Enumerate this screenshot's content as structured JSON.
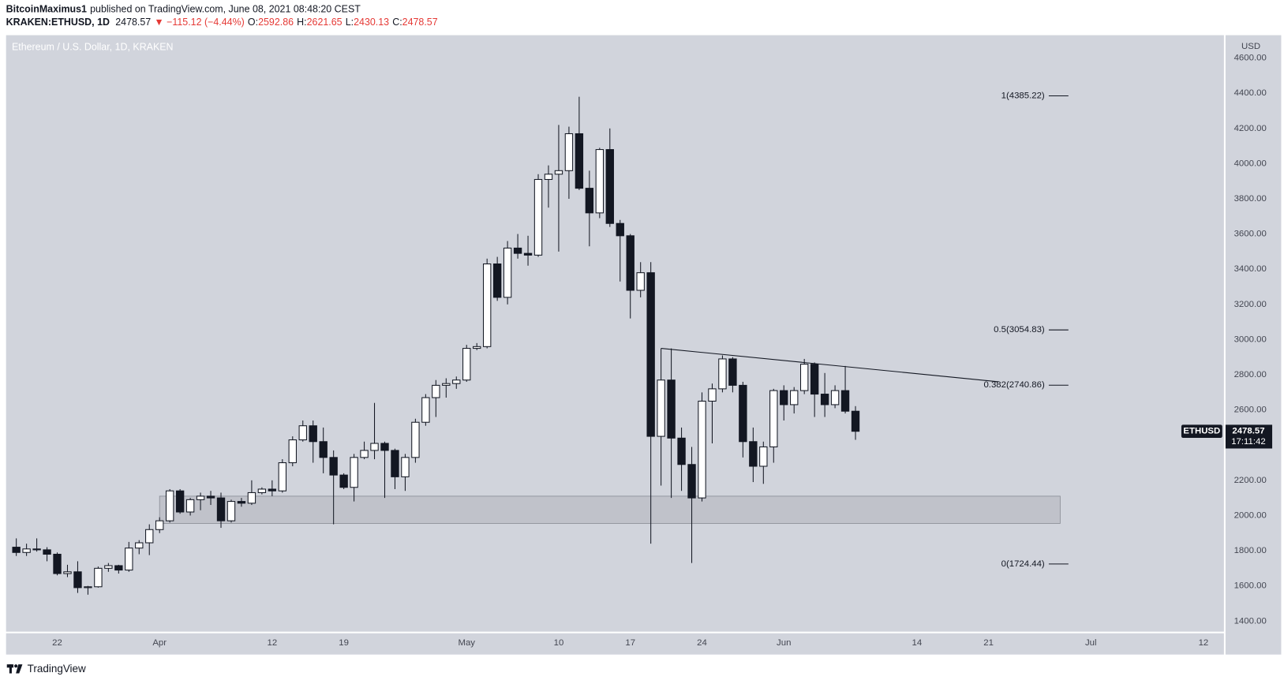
{
  "header": {
    "author": "BitcoinMaximus1",
    "published": "published on TradingView.com, June 08, 2021 08:48:20 CEST",
    "symbol": "KRAKEN:ETHUSD, 1D",
    "change": "▼ −115.12 (−4.44%)",
    "ohlc_labels": [
      "O:",
      "H:",
      "L:",
      "C:"
    ]
  },
  "chart_data": {
    "type": "candlestick",
    "title": "Ethereum / U.S. Dollar, 1D, KRAKEN",
    "y_axis_label": "USD",
    "x": [
      "03-18",
      "03-19",
      "03-20",
      "03-21",
      "03-22",
      "03-23",
      "03-24",
      "03-25",
      "03-26",
      "03-27",
      "03-28",
      "03-29",
      "03-30",
      "03-31",
      "04-01",
      "04-02",
      "04-03",
      "04-04",
      "04-05",
      "04-06",
      "04-07",
      "04-08",
      "04-09",
      "04-10",
      "04-11",
      "04-12",
      "04-13",
      "04-14",
      "04-15",
      "04-16",
      "04-17",
      "04-18",
      "04-19",
      "04-20",
      "04-21",
      "04-22",
      "04-23",
      "04-24",
      "04-25",
      "04-26",
      "04-27",
      "04-28",
      "04-29",
      "04-30",
      "05-01",
      "05-02",
      "05-03",
      "05-04",
      "05-05",
      "05-06",
      "05-07",
      "05-08",
      "05-09",
      "05-10",
      "05-11",
      "05-12",
      "05-13",
      "05-14",
      "05-15",
      "05-16",
      "05-17",
      "05-18",
      "05-19",
      "05-20",
      "05-21",
      "05-22",
      "05-23",
      "05-24",
      "05-25",
      "05-26",
      "05-27",
      "05-28",
      "05-29",
      "05-30",
      "05-31",
      "06-01",
      "06-02",
      "06-03",
      "06-04",
      "06-05",
      "06-06",
      "06-07",
      "06-08"
    ],
    "open": [
      1820,
      1790,
      1810,
      1805,
      1780,
      1670,
      1680,
      1590,
      1595,
      1700,
      1715,
      1690,
      1815,
      1845,
      1920,
      1970,
      2140,
      2020,
      2090,
      2110,
      2100,
      1970,
      2080,
      2070,
      2130,
      2150,
      2140,
      2300,
      2430,
      2510,
      2420,
      2330,
      2230,
      2160,
      2330,
      2370,
      2410,
      2370,
      2220,
      2330,
      2530,
      2670,
      2740,
      2750,
      2770,
      2950,
      2960,
      3430,
      3240,
      3520,
      3490,
      3480,
      3910,
      3940,
      3960,
      4170,
      3860,
      3720,
      4080,
      3660,
      3590,
      3280,
      3380,
      2450,
      2770,
      2440,
      2290,
      2100,
      2650,
      2720,
      2890,
      2740,
      2420,
      2280,
      2390,
      2710,
      2630,
      2710,
      2860,
      2690,
      2630,
      2710,
      2592.86
    ],
    "high": [
      1870,
      1840,
      1870,
      1820,
      1790,
      1720,
      1740,
      1600,
      1710,
      1730,
      1720,
      1850,
      1860,
      1950,
      1990,
      2150,
      2150,
      2100,
      2130,
      2140,
      2130,
      2090,
      2100,
      2200,
      2160,
      2200,
      2320,
      2450,
      2540,
      2540,
      2500,
      2370,
      2240,
      2350,
      2420,
      2640,
      2420,
      2380,
      2350,
      2550,
      2690,
      2770,
      2780,
      2790,
      2970,
      2980,
      3460,
      3470,
      3560,
      3600,
      3590,
      3940,
      3990,
      4220,
      4210,
      4380,
      3960,
      4090,
      4200,
      3680,
      3600,
      3440,
      3440,
      2950,
      2950,
      2500,
      2390,
      2700,
      2750,
      2910,
      2900,
      2760,
      2500,
      2420,
      2720,
      2740,
      2730,
      2890,
      2870,
      2810,
      2740,
      2850,
      2621.65
    ],
    "low": [
      1770,
      1770,
      1795,
      1740,
      1660,
      1650,
      1560,
      1550,
      1590,
      1680,
      1670,
      1680,
      1780,
      1775,
      1900,
      1960,
      2010,
      2000,
      2030,
      2060,
      1930,
      1960,
      2050,
      2060,
      2120,
      2110,
      2130,
      2280,
      2420,
      2300,
      2240,
      1950,
      2150,
      2080,
      2320,
      2320,
      2100,
      2150,
      2140,
      2300,
      2510,
      2560,
      2670,
      2720,
      2760,
      2940,
      2950,
      3220,
      3200,
      3460,
      3420,
      3470,
      3750,
      3500,
      3800,
      3850,
      3530,
      3690,
      3640,
      3330,
      3120,
      3240,
      1840,
      2170,
      2100,
      2140,
      1730,
      2080,
      2410,
      2700,
      2700,
      2330,
      2190,
      2180,
      2300,
      2540,
      2580,
      2690,
      2560,
      2560,
      2610,
      2580,
      2430.13
    ],
    "close": [
      1790,
      1810,
      1805,
      1780,
      1670,
      1680,
      1590,
      1595,
      1700,
      1715,
      1690,
      1815,
      1845,
      1920,
      1970,
      2140,
      2020,
      2090,
      2110,
      2100,
      1970,
      2080,
      2070,
      2130,
      2150,
      2140,
      2300,
      2430,
      2510,
      2420,
      2330,
      2230,
      2160,
      2330,
      2370,
      2410,
      2370,
      2220,
      2330,
      2530,
      2670,
      2740,
      2750,
      2770,
      2950,
      2960,
      3430,
      3240,
      3520,
      3490,
      3480,
      3910,
      3940,
      3960,
      4170,
      3860,
      3720,
      4080,
      3660,
      3590,
      3280,
      3380,
      2450,
      2770,
      2440,
      2290,
      2100,
      2650,
      2720,
      2890,
      2740,
      2420,
      2280,
      2390,
      2710,
      2630,
      2710,
      2860,
      2690,
      2630,
      2710,
      2593,
      2478.57
    ],
    "up_color": "#ffffff",
    "down_color": "#131722",
    "xlim": [
      "03-17",
      "07-14"
    ],
    "ylim": [
      1340,
      4730
    ],
    "xticks": [
      {
        "value": "03-22",
        "label": "22"
      },
      {
        "value": "04-01",
        "label": "Apr"
      },
      {
        "value": "04-12",
        "label": "12"
      },
      {
        "value": "04-19",
        "label": "19"
      },
      {
        "value": "05-01",
        "label": "May"
      },
      {
        "value": "05-10",
        "label": "10"
      },
      {
        "value": "05-17",
        "label": "17"
      },
      {
        "value": "05-24",
        "label": "24"
      },
      {
        "value": "06-01",
        "label": "Jun"
      },
      {
        "value": "06-14",
        "label": "14"
      },
      {
        "value": "06-21",
        "label": "21"
      },
      {
        "value": "07-01",
        "label": "Jul"
      },
      {
        "value": "07-12",
        "label": "12"
      }
    ],
    "yticks": [
      {
        "value": 1400,
        "label": "1400.00"
      },
      {
        "value": 1600,
        "label": "1600.00"
      },
      {
        "value": 1800,
        "label": "1800.00"
      },
      {
        "value": 2000,
        "label": "2000.00"
      },
      {
        "value": 2200,
        "label": "2200.00"
      },
      {
        "value": 2400,
        "label": "2400.00"
      },
      {
        "value": 2600,
        "label": "2600.00"
      },
      {
        "value": 2800,
        "label": "2800.00"
      },
      {
        "value": 3000,
        "label": "3000.00"
      },
      {
        "value": 3200,
        "label": "3200.00"
      },
      {
        "value": 3400,
        "label": "3400.00"
      },
      {
        "value": 3600,
        "label": "3600.00"
      },
      {
        "value": 3800,
        "label": "3800.00"
      },
      {
        "value": 4000,
        "label": "4000.00"
      },
      {
        "value": 4200,
        "label": "4200.00"
      },
      {
        "value": 4400,
        "label": "4400.00"
      },
      {
        "value": 4600,
        "label": "4600.00"
      }
    ],
    "grid": false,
    "fib_levels": [
      {
        "value": 4385.22,
        "label": "1(4385.22)"
      },
      {
        "value": 3054.83,
        "label": "0.5(3054.83)"
      },
      {
        "value": 2740.86,
        "label": "0.382(2740.86)"
      },
      {
        "value": 1724.44,
        "label": "0(1724.44)"
      }
    ],
    "trendline": {
      "x": [
        "05-20",
        "06-22"
      ],
      "y": [
        2950,
        2760
      ]
    },
    "zone": {
      "x": [
        "04-01",
        "06-28"
      ],
      "y": [
        1955,
        2110
      ]
    },
    "price_tag": {
      "symbol": "ETHUSD",
      "countdown": "17:11:42"
    }
  },
  "footer": {
    "brand": "TradingView"
  }
}
